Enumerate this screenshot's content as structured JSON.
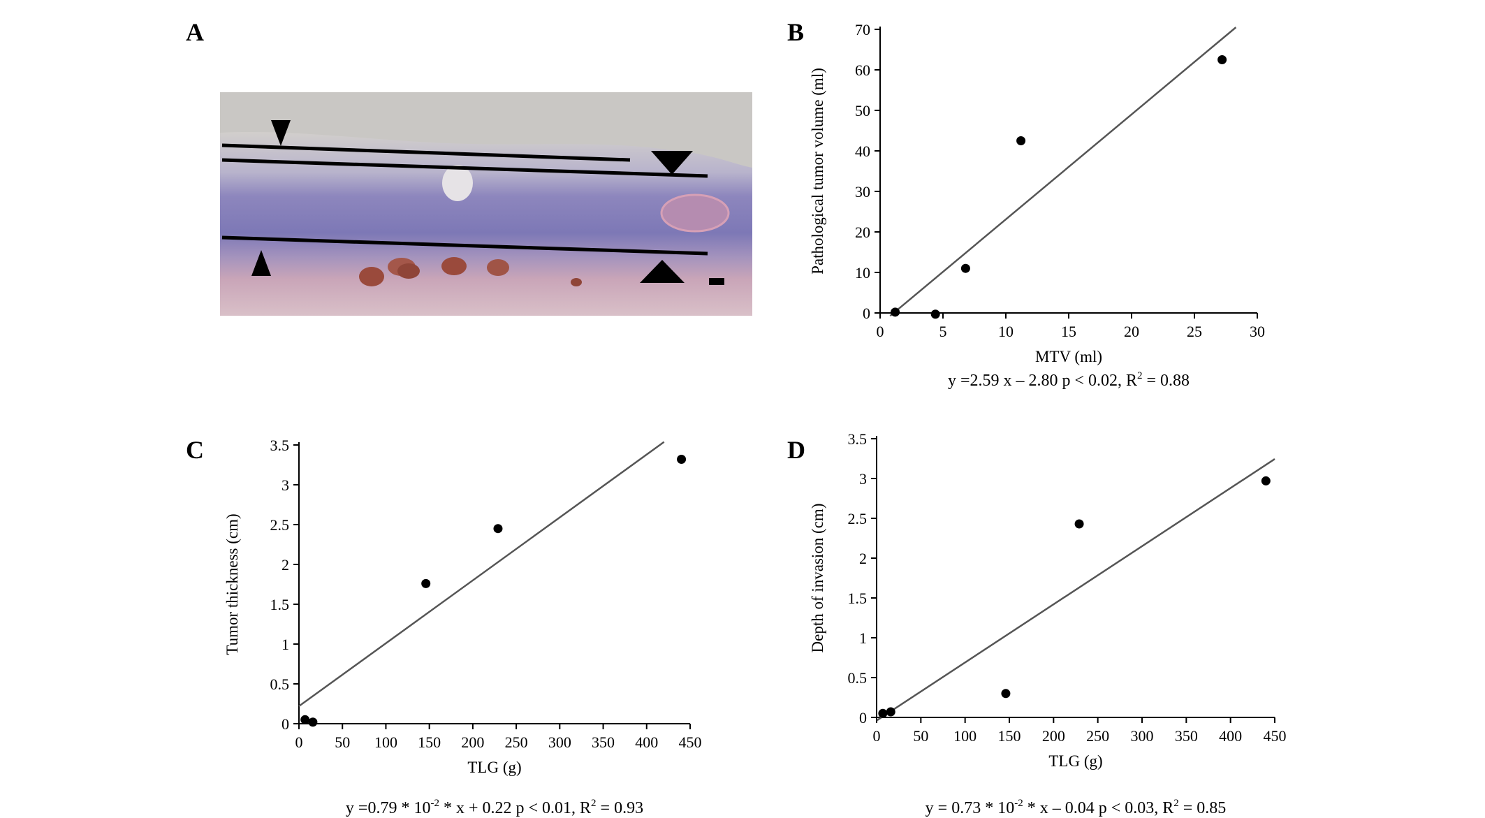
{
  "panels": {
    "A": {
      "letter": "A",
      "image_desc_colors": {
        "background": "#c9c7c3",
        "tissue_purple": "#8a84b8",
        "tissue_pink": "#c99bb0",
        "blood": "#9a4a3c"
      }
    }
  },
  "chart_data": [
    {
      "panel": "B",
      "letter": "B",
      "type": "scatter",
      "xlabel": "MTV (ml)",
      "ylabel": "Pathological tumor volume (ml)",
      "xlim": [
        0,
        30
      ],
      "ylim": [
        0,
        70
      ],
      "xticks": [
        0,
        5,
        10,
        15,
        20,
        25,
        30
      ],
      "yticks": [
        0,
        10,
        20,
        30,
        40,
        50,
        60,
        70
      ],
      "points": [
        [
          1.2,
          0.2
        ],
        [
          4.4,
          -0.3
        ],
        [
          6.8,
          11
        ],
        [
          11.2,
          42.5
        ],
        [
          27.2,
          62.5
        ]
      ],
      "fit": {
        "slope": 2.59,
        "intercept": -2.8,
        "x_range": [
          0.8,
          28.3
        ]
      },
      "equation": {
        "main": "y =2.59 x – 2.80 p < 0.02, R",
        "sup": "2",
        "tail": " = 0.88"
      }
    },
    {
      "panel": "C",
      "letter": "C",
      "type": "scatter",
      "xlabel": "TLG (g)",
      "ylabel": "Tumor thickness (cm)",
      "xlim": [
        0,
        450
      ],
      "ylim": [
        0,
        3.5
      ],
      "xticks": [
        0,
        50,
        100,
        150,
        200,
        250,
        300,
        350,
        400,
        450
      ],
      "yticks": [
        "0",
        "0.5",
        "1",
        "1.5",
        "2",
        "2.5",
        "3",
        "3.5"
      ],
      "points": [
        [
          7,
          0.05
        ],
        [
          16,
          0.02
        ],
        [
          146,
          1.76
        ],
        [
          229,
          2.45
        ],
        [
          440,
          3.32
        ]
      ],
      "fit": {
        "slope": 0.0079,
        "intercept": 0.22,
        "x_range": [
          0,
          420
        ]
      },
      "equation": {
        "main": "y =0.79 * 10",
        "sup": "-2",
        "tail": " * x + 0.22 p < 0.01, R",
        "sup2": "2",
        "tail2": " = 0.93"
      }
    },
    {
      "panel": "D",
      "letter": "D",
      "type": "scatter",
      "xlabel": "TLG (g)",
      "ylabel": "Depth of invasion (cm)",
      "xlim": [
        0,
        450
      ],
      "ylim": [
        0,
        3.5
      ],
      "xticks": [
        0,
        50,
        100,
        150,
        200,
        250,
        300,
        350,
        400,
        450
      ],
      "yticks": [
        "0",
        "0.5",
        "1",
        "1.5",
        "2",
        "2.5",
        "3",
        "3.5"
      ],
      "points": [
        [
          7,
          0.05
        ],
        [
          16,
          0.07
        ],
        [
          146,
          0.3
        ],
        [
          229,
          2.43
        ],
        [
          440,
          2.97
        ]
      ],
      "fit": {
        "slope": 0.0073,
        "intercept": -0.04,
        "x_range": [
          0,
          450
        ]
      },
      "equation": {
        "main": "y = 0.73 * 10",
        "sup": "-2",
        "tail": " * x – 0.04 p < 0.03, R",
        "sup2": "2",
        "tail2": " = 0.85"
      }
    }
  ]
}
